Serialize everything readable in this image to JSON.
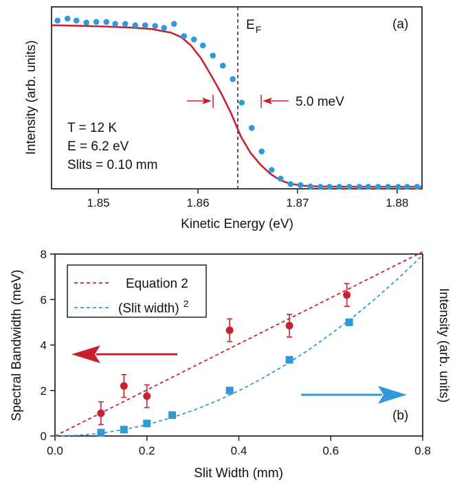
{
  "colors": {
    "red": "#c8202f",
    "blue": "#2e9bd8",
    "axis": "#111111"
  },
  "chart_data": [
    {
      "panel": "(a)",
      "type": "scatter",
      "xlabel": "Kinetic Energy (eV)",
      "ylabel": "Intensity (arb. units)",
      "xlim": [
        1.8453,
        1.8825
      ],
      "ylim": [
        0,
        1
      ],
      "xticks": [
        "1.85",
        "1.86",
        "1.87",
        "1.88"
      ],
      "fermi_label": "E",
      "fermi_sub": "F",
      "fermi_x": 1.864,
      "width_label": "5.0 meV",
      "params": [
        "T = 12 K",
        "E = 6.2 eV",
        "Slits = 0.10 mm"
      ],
      "series": [
        {
          "kind": "points",
          "x": [
            1.8459,
            1.8469,
            1.8478,
            1.8488,
            1.8498,
            1.8508,
            1.8517,
            1.8527,
            1.8537,
            1.8547,
            1.8557,
            1.8566,
            1.8576,
            1.8586,
            1.8596,
            1.8605,
            1.8615,
            1.8625,
            1.8635,
            1.8644,
            1.8654,
            1.8664,
            1.8674,
            1.8683,
            1.8693,
            1.8703,
            1.8713,
            1.8723,
            1.8732,
            1.8742,
            1.8752,
            1.8762,
            1.8771,
            1.8781,
            1.8791,
            1.8801,
            1.881,
            1.882
          ],
          "y": [
            0.988,
            1.0,
            0.988,
            0.976,
            0.98,
            0.98,
            0.968,
            0.968,
            0.96,
            0.96,
            0.956,
            0.944,
            0.968,
            0.896,
            0.876,
            0.84,
            0.78,
            0.72,
            0.64,
            0.5,
            0.35,
            0.21,
            0.1,
            0.048,
            0.016,
            0.01,
            0.002,
            0,
            0,
            0,
            0,
            0,
            0,
            0,
            0,
            0,
            0,
            0
          ]
        },
        {
          "kind": "fit",
          "x": [
            1.8453,
            1.8473,
            1.8493,
            1.8513,
            1.8533,
            1.8553,
            1.8573,
            1.8583,
            1.8593,
            1.8603,
            1.8613,
            1.8623,
            1.8633,
            1.8638,
            1.8643,
            1.8648,
            1.8653,
            1.8663,
            1.8673,
            1.8683,
            1.8693,
            1.8703,
            1.8713,
            1.8733,
            1.8763,
            1.8825
          ],
          "y": [
            0.96,
            0.958,
            0.955,
            0.951,
            0.946,
            0.938,
            0.916,
            0.89,
            0.84,
            0.765,
            0.665,
            0.56,
            0.44,
            0.37,
            0.3,
            0.25,
            0.2,
            0.13,
            0.075,
            0.038,
            0.018,
            0.008,
            0.003,
            0.001,
            0,
            0
          ]
        }
      ]
    },
    {
      "panel": "(b)",
      "type": "scatter",
      "xlabel": "Slit Width (mm)",
      "ylabel": "Spectral Bandwidth (meV)",
      "y2label": "Intensity (arb. units)",
      "xlim": [
        0,
        0.8
      ],
      "ylim": [
        0,
        8
      ],
      "xticks": [
        "0.0",
        "0.2",
        "0.4",
        "0.6",
        "0.8"
      ],
      "yticks": [
        "0",
        "2",
        "4",
        "6",
        "8"
      ],
      "legend": {
        "position": "top-left",
        "entries": [
          "Equation 2",
          "(Slit width)",
          "2"
        ]
      },
      "series": [
        {
          "name": "Equation 2",
          "kind": "dashed-line",
          "x": [
            0,
            0.8
          ],
          "y": [
            0,
            8.1
          ]
        },
        {
          "name": "(Slit width) 2",
          "kind": "dashed-curve",
          "x": [
            0,
            0.05,
            0.1,
            0.15,
            0.2,
            0.25,
            0.3,
            0.35,
            0.4,
            0.45,
            0.5,
            0.55,
            0.6,
            0.65,
            0.7,
            0.75,
            0.8
          ],
          "y": [
            0,
            0.03,
            0.12,
            0.28,
            0.5,
            0.78,
            1.12,
            1.52,
            1.99,
            2.52,
            3.11,
            3.76,
            4.48,
            5.25,
            6.09,
            6.99,
            7.95
          ]
        },
        {
          "kind": "points-errorbars",
          "x": [
            0.1,
            0.15,
            0.2,
            0.38,
            0.51,
            0.635
          ],
          "y": [
            1.0,
            2.2,
            1.75,
            4.65,
            4.85,
            6.2
          ],
          "err": [
            0.5,
            0.5,
            0.5,
            0.5,
            0.5,
            0.5
          ]
        },
        {
          "kind": "squares",
          "x": [
            0.1,
            0.15,
            0.2,
            0.255,
            0.38,
            0.51,
            0.64
          ],
          "y": [
            0.15,
            0.28,
            0.55,
            0.92,
            2.0,
            3.35,
            5.0
          ]
        }
      ]
    }
  ]
}
